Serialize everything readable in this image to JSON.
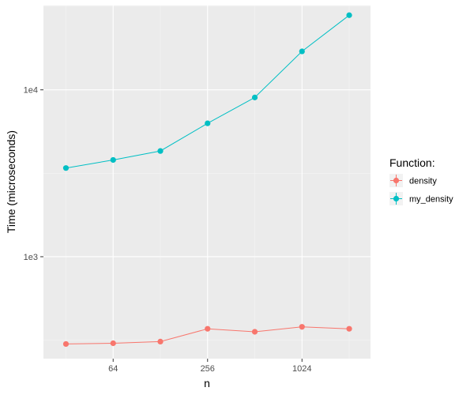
{
  "chart_data": {
    "type": "line",
    "x_scale": "log2",
    "y_scale": "log10",
    "xlabel": "n",
    "ylabel": "Time (microseconds)",
    "x": [
      32,
      64,
      128,
      256,
      512,
      1024,
      2048
    ],
    "x_ticks": [
      64,
      256,
      1024
    ],
    "x_tick_labels": [
      "64",
      "256",
      "1024"
    ],
    "y_ticks": [
      1000,
      10000
    ],
    "y_tick_labels": [
      "1e3",
      "1e4"
    ],
    "xlim": [
      23,
      2800
    ],
    "ylim": [
      245,
      32000
    ],
    "grid": true,
    "panel_background": "#ebebeb",
    "legend": {
      "title": "Function:",
      "position": "right"
    },
    "series": [
      {
        "name": "density",
        "color": "#f8766d",
        "values": [
          300,
          303,
          310,
          370,
          355,
          380,
          370
        ]
      },
      {
        "name": "my_density",
        "color": "#00bfc4",
        "values": [
          3400,
          3800,
          4300,
          6300,
          9000,
          17000,
          28000
        ]
      }
    ]
  }
}
